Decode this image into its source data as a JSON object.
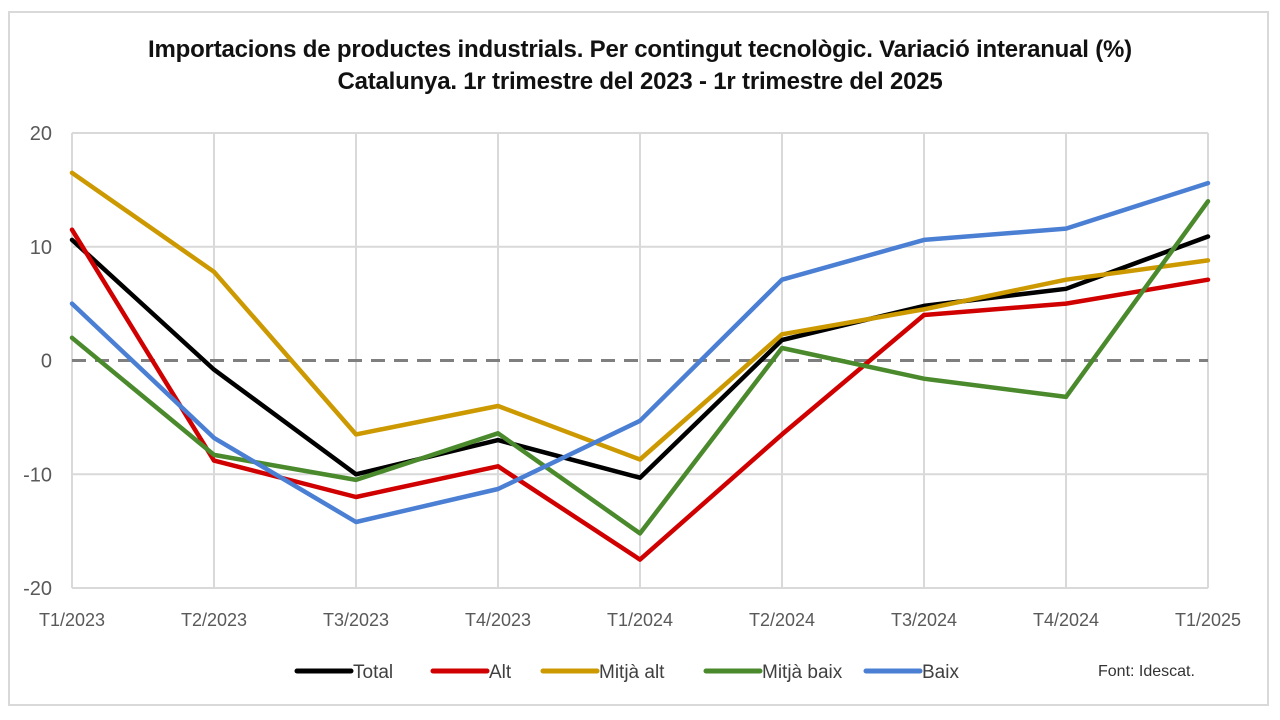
{
  "chart_data": {
    "type": "line",
    "title_line1": "Importacions de productes industrials. Per contingut tecnològic. Variació interanual (%)",
    "title_line2": "Catalunya. 1r trimestre del 2023 - 1r trimestre del 2025",
    "xlabel": "",
    "ylabel": "",
    "ylim": [
      -20,
      20
    ],
    "yticks": [
      "20",
      "10",
      "0",
      "-10",
      "-20"
    ],
    "ytick_values": [
      20,
      10,
      0,
      -10,
      -20
    ],
    "categories": [
      "T1/2023",
      "T2/2023",
      "T3/2023",
      "T4/2023",
      "T1/2024",
      "T2/2024",
      "T3/2024",
      "T4/2024",
      "T1/2025"
    ],
    "grid": true,
    "zero_line": "dashed",
    "legend_position": "bottom",
    "series": [
      {
        "name": "Total",
        "color": "#000000",
        "values": [
          10.6,
          -0.8,
          -10.0,
          -7.0,
          -10.3,
          1.8,
          4.8,
          6.3,
          10.9
        ]
      },
      {
        "name": "Alt",
        "color": "#d00000",
        "values": [
          11.5,
          -8.8,
          -12.0,
          -9.3,
          -17.5,
          -6.5,
          4.0,
          5.0,
          7.1
        ]
      },
      {
        "name": "Mitjà alt",
        "color": "#cc9900",
        "values": [
          16.5,
          7.8,
          -6.5,
          -4.0,
          -8.7,
          2.3,
          4.5,
          7.1,
          8.8
        ]
      },
      {
        "name": "Mitjà baix",
        "color": "#4a8a2c",
        "values": [
          2.0,
          -8.3,
          -10.5,
          -6.4,
          -15.2,
          1.1,
          -1.6,
          -3.2,
          14.0
        ]
      },
      {
        "name": "Baix",
        "color": "#4a7fd4",
        "values": [
          5.0,
          -6.8,
          -14.2,
          -11.3,
          -5.3,
          7.1,
          10.6,
          11.6,
          15.6
        ]
      }
    ],
    "source": "Font: Idescat."
  }
}
